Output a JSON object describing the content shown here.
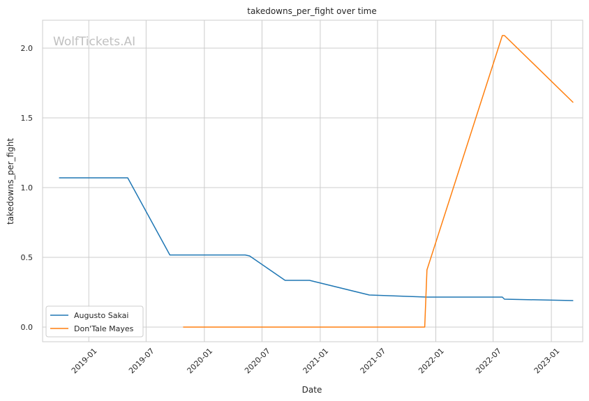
{
  "chart_data": {
    "type": "line",
    "title": "takedowns_per_fight over time",
    "xlabel": "Date",
    "ylabel": "takedowns_per_fight",
    "watermark": "WolfTickets.AI",
    "x_ticks": [
      "2019-01",
      "2019-07",
      "2020-01",
      "2020-07",
      "2021-01",
      "2021-07",
      "2022-01",
      "2022-07",
      "2023-01"
    ],
    "y_ticks": [
      "0.0",
      "0.5",
      "1.0",
      "1.5",
      "2.0"
    ],
    "xlim": [
      "2018-08-08",
      "2023-04-10"
    ],
    "ylim": [
      -0.105,
      2.2
    ],
    "grid": true,
    "legend_position": "lower-left",
    "series": [
      {
        "name": "Augusto Sakai",
        "color": "#1f77b4",
        "points": [
          {
            "x": "2018-09-29",
            "y": 1.07
          },
          {
            "x": "2019-05-04",
            "y": 1.07
          },
          {
            "x": "2019-09-14",
            "y": 0.517
          },
          {
            "x": "2020-05-09",
            "y": 0.517
          },
          {
            "x": "2020-05-23",
            "y": 0.51
          },
          {
            "x": "2020-09-12",
            "y": 0.335
          },
          {
            "x": "2020-11-28",
            "y": 0.335
          },
          {
            "x": "2021-06-05",
            "y": 0.23
          },
          {
            "x": "2021-12-04",
            "y": 0.215
          },
          {
            "x": "2022-07-30",
            "y": 0.215
          },
          {
            "x": "2022-08-06",
            "y": 0.2
          },
          {
            "x": "2023-03-11",
            "y": 0.19
          }
        ]
      },
      {
        "name": "Don'Tale Mayes",
        "color": "#ff7f0e",
        "points": [
          {
            "x": "2019-10-26",
            "y": 0.0
          },
          {
            "x": "2021-11-27",
            "y": 0.0
          },
          {
            "x": "2021-12-04",
            "y": 0.41
          },
          {
            "x": "2022-07-30",
            "y": 2.09
          },
          {
            "x": "2022-08-06",
            "y": 2.09
          },
          {
            "x": "2023-03-11",
            "y": 1.61
          }
        ]
      }
    ]
  }
}
